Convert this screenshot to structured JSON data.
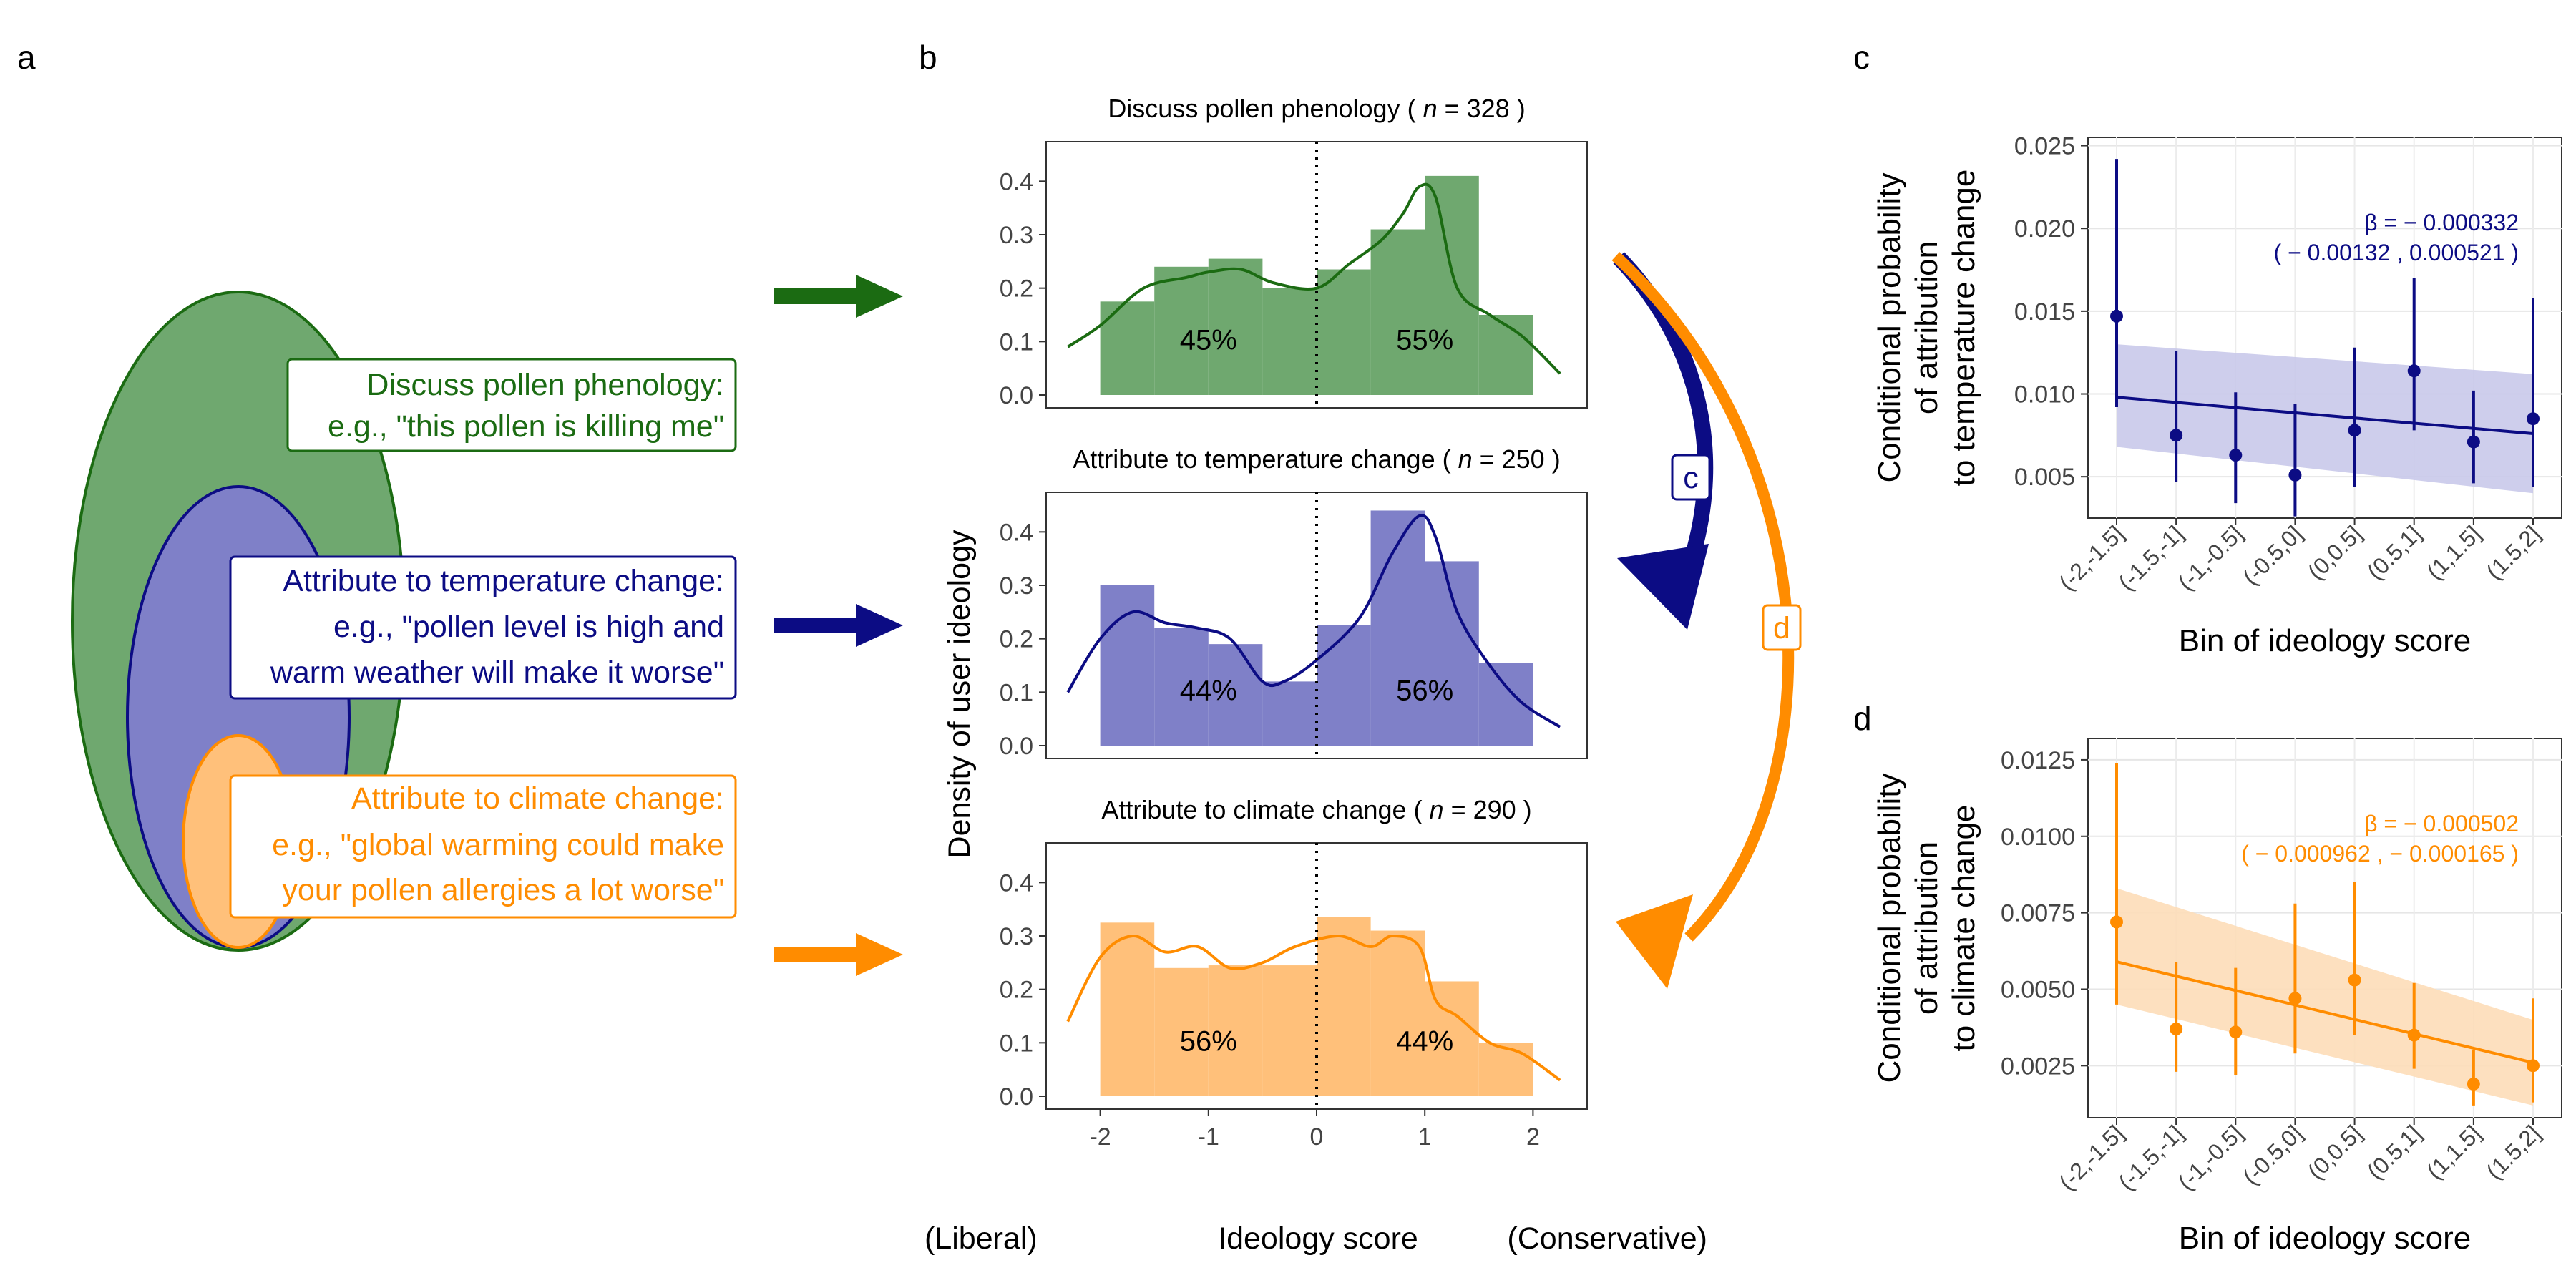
{
  "panel_labels": {
    "a": "a",
    "b": "b",
    "c": "c",
    "d": "d"
  },
  "colors": {
    "green_fill": "#6fa86f",
    "green_line": "#1b6b12",
    "blue_fill": "#7f80c8",
    "blue_line": "#0c0c84",
    "orange_fill": "#ffc07a",
    "orange_line": "#ff8c00",
    "blue_band": "#c9c9ea",
    "orange_band": "#fdddb8"
  },
  "panel_a": {
    "boxes": [
      {
        "title": "Discuss pollen phenology:",
        "example_lines": [
          "e.g., \"this pollen is killing me\""
        ],
        "color": "#1b6b12"
      },
      {
        "title": "Attribute to temperature change:",
        "example_lines": [
          "e.g., \"pollen level is high and",
          "warm weather will make it worse\""
        ],
        "color": "#0c0c84"
      },
      {
        "title": "Attribute to climate change:",
        "example_lines": [
          "e.g., \"global warming could make",
          "your pollen allergies a lot worse\""
        ],
        "color": "#ff8c00"
      }
    ]
  },
  "panel_b": {
    "y_title": "Density of user ideology",
    "x_title": "Ideology score",
    "x_left_note": "(Liberal)",
    "x_right_note": "(Conservative)",
    "arrow_labels": {
      "c": "c",
      "d": "d"
    }
  },
  "chart_data": [
    {
      "id": "b1",
      "type": "bar",
      "title": "Discuss pollen phenology",
      "n_label": "n",
      "n_value": "328",
      "bins": [
        [
          -2,
          -1.5
        ],
        [
          -1.5,
          -1
        ],
        [
          -1,
          -0.5
        ],
        [
          -0.5,
          0
        ],
        [
          0,
          0.5
        ],
        [
          0.5,
          1
        ],
        [
          1,
          1.5
        ],
        [
          1.5,
          2
        ]
      ],
      "values": [
        0.175,
        0.24,
        0.255,
        0.2,
        0.235,
        0.31,
        0.41,
        0.15
      ],
      "density_x": [
        -2.3,
        -2,
        -1.6,
        -1.2,
        -1,
        -0.7,
        -0.4,
        0,
        0.3,
        0.6,
        0.8,
        0.95,
        1.1,
        1.3,
        1.6,
        1.9,
        2.25
      ],
      "density_y": [
        0.09,
        0.13,
        0.2,
        0.22,
        0.23,
        0.235,
        0.21,
        0.2,
        0.245,
        0.29,
        0.34,
        0.39,
        0.37,
        0.2,
        0.15,
        0.11,
        0.04
      ],
      "left_pct": "45%",
      "right_pct": "55%",
      "ylim": [
        0,
        0.45
      ],
      "xlim": [
        -2.5,
        2.5
      ],
      "y_ticks": [
        "0.0",
        "0.1",
        "0.2",
        "0.3",
        "0.4"
      ],
      "color": "#1b6b12"
    },
    {
      "id": "b2",
      "type": "bar",
      "title": "Attribute to temperature change",
      "n_label": "n",
      "n_value": "250",
      "bins": [
        [
          -2,
          -1.5
        ],
        [
          -1.5,
          -1
        ],
        [
          -1,
          -0.5
        ],
        [
          -0.5,
          0
        ],
        [
          0,
          0.5
        ],
        [
          0.5,
          1
        ],
        [
          1,
          1.5
        ],
        [
          1.5,
          2
        ]
      ],
      "values": [
        0.3,
        0.22,
        0.19,
        0.12,
        0.225,
        0.44,
        0.345,
        0.155
      ],
      "density_x": [
        -2.3,
        -2,
        -1.7,
        -1.4,
        -1.1,
        -0.8,
        -0.5,
        -0.3,
        0,
        0.4,
        0.7,
        0.95,
        1.1,
        1.3,
        1.6,
        1.9,
        2.25
      ],
      "density_y": [
        0.1,
        0.2,
        0.25,
        0.23,
        0.22,
        0.2,
        0.12,
        0.12,
        0.16,
        0.24,
        0.36,
        0.43,
        0.39,
        0.25,
        0.15,
        0.08,
        0.035
      ],
      "left_pct": "44%",
      "right_pct": "56%",
      "ylim": [
        0,
        0.45
      ],
      "xlim": [
        -2.5,
        2.5
      ],
      "y_ticks": [
        "0.0",
        "0.1",
        "0.2",
        "0.3",
        "0.4"
      ],
      "color": "#0c0c84"
    },
    {
      "id": "b3",
      "type": "bar",
      "title": "Attribute to climate change",
      "n_label": "n",
      "n_value": "290",
      "bins": [
        [
          -2,
          -1.5
        ],
        [
          -1.5,
          -1
        ],
        [
          -1,
          -0.5
        ],
        [
          -0.5,
          0
        ],
        [
          0,
          0.5
        ],
        [
          0.5,
          1
        ],
        [
          1,
          1.5
        ],
        [
          1.5,
          2
        ]
      ],
      "values": [
        0.325,
        0.24,
        0.245,
        0.245,
        0.335,
        0.31,
        0.215,
        0.1
      ],
      "density_x": [
        -2.3,
        -2,
        -1.7,
        -1.4,
        -1.1,
        -0.8,
        -0.5,
        -0.2,
        0.2,
        0.5,
        0.7,
        0.95,
        1.1,
        1.3,
        1.6,
        1.9,
        2.25
      ],
      "density_y": [
        0.14,
        0.26,
        0.3,
        0.27,
        0.28,
        0.24,
        0.25,
        0.28,
        0.3,
        0.28,
        0.3,
        0.28,
        0.18,
        0.15,
        0.1,
        0.08,
        0.03
      ],
      "left_pct": "56%",
      "right_pct": "44%",
      "ylim": [
        0,
        0.45
      ],
      "xlim": [
        -2.5,
        2.5
      ],
      "y_ticks": [
        "0.0",
        "0.1",
        "0.2",
        "0.3",
        "0.4"
      ],
      "x_ticks": [
        "-2",
        "-1",
        "0",
        "1",
        "2"
      ],
      "color": "#ff8c00"
    },
    {
      "id": "c",
      "type": "scatter",
      "ylabel_lines": [
        "Conditional probability",
        "of attribution",
        "to temperature change"
      ],
      "xlabel": "Bin of ideology score",
      "categories": [
        "(-2,-1.5]",
        "(-1.5,-1]",
        "(-1,-0.5]",
        "(-0.5,0]",
        "(0,0.5]",
        "(0.5,1]",
        "(1,1.5]",
        "(1.5,2]"
      ],
      "values": [
        0.0147,
        0.0075,
        0.0063,
        0.0051,
        0.0078,
        0.0114,
        0.0071,
        0.0085
      ],
      "lower": [
        0.0092,
        0.0047,
        0.0034,
        0.0026,
        0.0044,
        0.0078,
        0.0046,
        0.0044
      ],
      "upper": [
        0.0242,
        0.0126,
        0.0101,
        0.0094,
        0.0128,
        0.017,
        0.0102,
        0.0158
      ],
      "fit_line": [
        0.0098,
        0.0076
      ],
      "band_lower": [
        0.0068,
        0.004
      ],
      "band_upper": [
        0.013,
        0.0112
      ],
      "annotation_beta": "β = − 0.000332",
      "annotation_ci": "( − 0.00132 , 0.000521 )",
      "ylim": [
        0.0025,
        0.0255
      ],
      "y_ticks": [
        "0.005",
        "0.010",
        "0.015",
        "0.020",
        "0.025"
      ],
      "y_tick_values": [
        0.005,
        0.01,
        0.015,
        0.02,
        0.025
      ],
      "color": "#0c0c84",
      "band_color": "#c9c9ea"
    },
    {
      "id": "d",
      "type": "scatter",
      "ylabel_lines": [
        "Conditional probability",
        "of attribution",
        "to climate change"
      ],
      "xlabel": "Bin of ideology score",
      "categories": [
        "(-2,-1.5]",
        "(-1.5,-1]",
        "(-1,-0.5]",
        "(-0.5,0]",
        "(0,0.5]",
        "(0.5,1]",
        "(1,1.5]",
        "(1.5,2]"
      ],
      "values": [
        0.0072,
        0.0037,
        0.0036,
        0.0047,
        0.0053,
        0.0035,
        0.0019,
        0.0025
      ],
      "lower": [
        0.0045,
        0.0023,
        0.0022,
        0.0029,
        0.0035,
        0.0024,
        0.0012,
        0.0013
      ],
      "upper": [
        0.0124,
        0.0059,
        0.0057,
        0.0078,
        0.0085,
        0.0052,
        0.003,
        0.0047
      ],
      "fit_line": [
        0.0059,
        0.0026
      ],
      "band_lower": [
        0.0045,
        0.0012
      ],
      "band_upper": [
        0.0083,
        0.004
      ],
      "annotation_beta": "β = − 0.000502",
      "annotation_ci": "( − 0.000962 , − 0.000165 )",
      "ylim": [
        0.0008,
        0.0132
      ],
      "y_ticks": [
        "0.0025",
        "0.0050",
        "0.0075",
        "0.0100",
        "0.0125"
      ],
      "y_tick_values": [
        0.0025,
        0.005,
        0.0075,
        0.01,
        0.0125
      ],
      "color": "#ff8c00",
      "band_color": "#fdddb8"
    }
  ]
}
